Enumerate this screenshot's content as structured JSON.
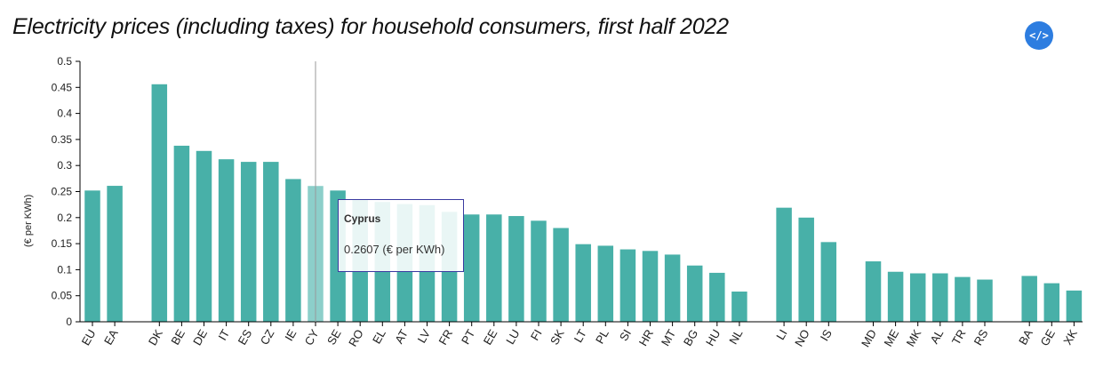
{
  "title": "Electricity prices (including taxes) for household consumers, first half 2022",
  "embed_label": "</>",
  "colors": {
    "bar": "#48b0a8",
    "bar_highlight": "#8ccfca",
    "axis": "#000000",
    "crosshair": "#999999"
  },
  "tooltip": {
    "name": "Cyprus",
    "value": "0.2607 (€ per KWh)"
  },
  "chart_data": {
    "type": "bar",
    "title": "Electricity prices (including taxes) for household consumers, first half 2022",
    "ylabel": "(€ per KWh)",
    "xlabel": "",
    "ylim": [
      0,
      0.5
    ],
    "yticks": [
      "0",
      "0.05",
      "0.1",
      "0.15",
      "0.2",
      "0.25",
      "0.3",
      "0.35",
      "0.4",
      "0.45",
      "0.5"
    ],
    "grid": false,
    "highlighted": "CY",
    "groups": [
      {
        "categories": [
          "EU",
          "EA"
        ],
        "values": [
          0.252,
          0.261
        ]
      },
      {
        "categories": [
          "DK",
          "BE",
          "DE",
          "IT",
          "ES",
          "CZ",
          "IE",
          "CY",
          "SE",
          "RO",
          "EL",
          "AT",
          "LV",
          "FR",
          "PT",
          "EE",
          "LU",
          "FI",
          "SK",
          "LT",
          "PL",
          "SI",
          "HR",
          "MT",
          "BG",
          "HU",
          "NL"
        ],
        "values": [
          0.456,
          0.338,
          0.328,
          0.312,
          0.307,
          0.307,
          0.274,
          0.2607,
          0.252,
          0.235,
          0.23,
          0.226,
          0.224,
          0.211,
          0.206,
          0.206,
          0.203,
          0.194,
          0.18,
          0.149,
          0.146,
          0.139,
          0.136,
          0.129,
          0.108,
          0.094,
          0.058
        ]
      },
      {
        "categories": [
          "LI",
          "NO",
          "IS"
        ],
        "values": [
          0.219,
          0.2,
          0.153
        ]
      },
      {
        "categories": [
          "MD",
          "ME",
          "MK",
          "AL",
          "TR",
          "RS"
        ],
        "values": [
          0.116,
          0.096,
          0.093,
          0.093,
          0.086,
          0.081
        ]
      },
      {
        "categories": [
          "BA",
          "GE",
          "XK"
        ],
        "values": [
          0.088,
          0.074,
          0.06
        ]
      }
    ]
  }
}
